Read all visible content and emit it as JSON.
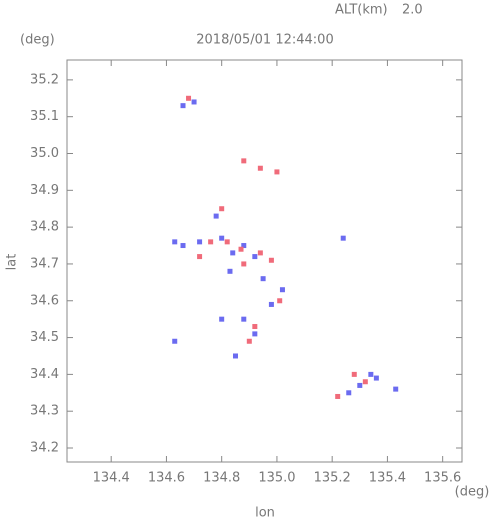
{
  "chart_data": {
    "type": "scatter",
    "title": "2018/05/01 12:44:00",
    "altitude_label": "ALT(km)",
    "altitude": "2.0",
    "y_unit": "(deg)",
    "x_unit": "(deg)",
    "x_label": "lon",
    "y_label": "lat",
    "xlim": [
      134.24,
      135.67
    ],
    "ylim": [
      34.162,
      35.254
    ],
    "xticks": [
      134.4,
      134.6,
      134.8,
      {
        "value": 135,
        "label": "135.0"
      },
      135.2,
      135.4,
      135.6
    ],
    "yticks": [
      34.2,
      34.3,
      34.4,
      34.5,
      34.6,
      34.7,
      34.8,
      34.9,
      {
        "value": 35,
        "label": "35.0"
      },
      35.1,
      35.2
    ],
    "series": [
      {
        "color": "#6b6bf0",
        "x": [
          134.63,
          134.66,
          134.72,
          134.78,
          134.8,
          134.84,
          134.83,
          134.88,
          134.92,
          134.95,
          134.98,
          135.02,
          134.88,
          134.92,
          134.85,
          134.63,
          135.24,
          135.26,
          135.3,
          135.34,
          135.36,
          135.43,
          134.66,
          134.7,
          134.8
        ],
        "values": [
          34.76,
          34.75,
          34.76,
          34.83,
          34.77,
          34.73,
          34.68,
          34.75,
          34.72,
          34.66,
          34.59,
          34.63,
          34.55,
          34.51,
          34.45,
          34.49,
          34.77,
          34.35,
          34.37,
          34.4,
          34.39,
          34.36,
          35.13,
          35.14,
          34.55
        ]
      },
      {
        "color": "#f06b7a",
        "x": [
          134.8,
          134.76,
          134.82,
          134.87,
          134.94,
          134.88,
          134.9,
          134.92,
          134.94,
          135.0,
          134.88,
          135.22,
          135.28,
          135.32,
          134.72,
          134.68,
          134.98,
          135.01
        ],
        "values": [
          34.85,
          34.76,
          34.76,
          34.74,
          34.73,
          34.7,
          34.49,
          34.53,
          34.96,
          34.95,
          34.98,
          34.34,
          34.4,
          34.38,
          34.72,
          35.15,
          34.71,
          34.6
        ]
      }
    ]
  }
}
